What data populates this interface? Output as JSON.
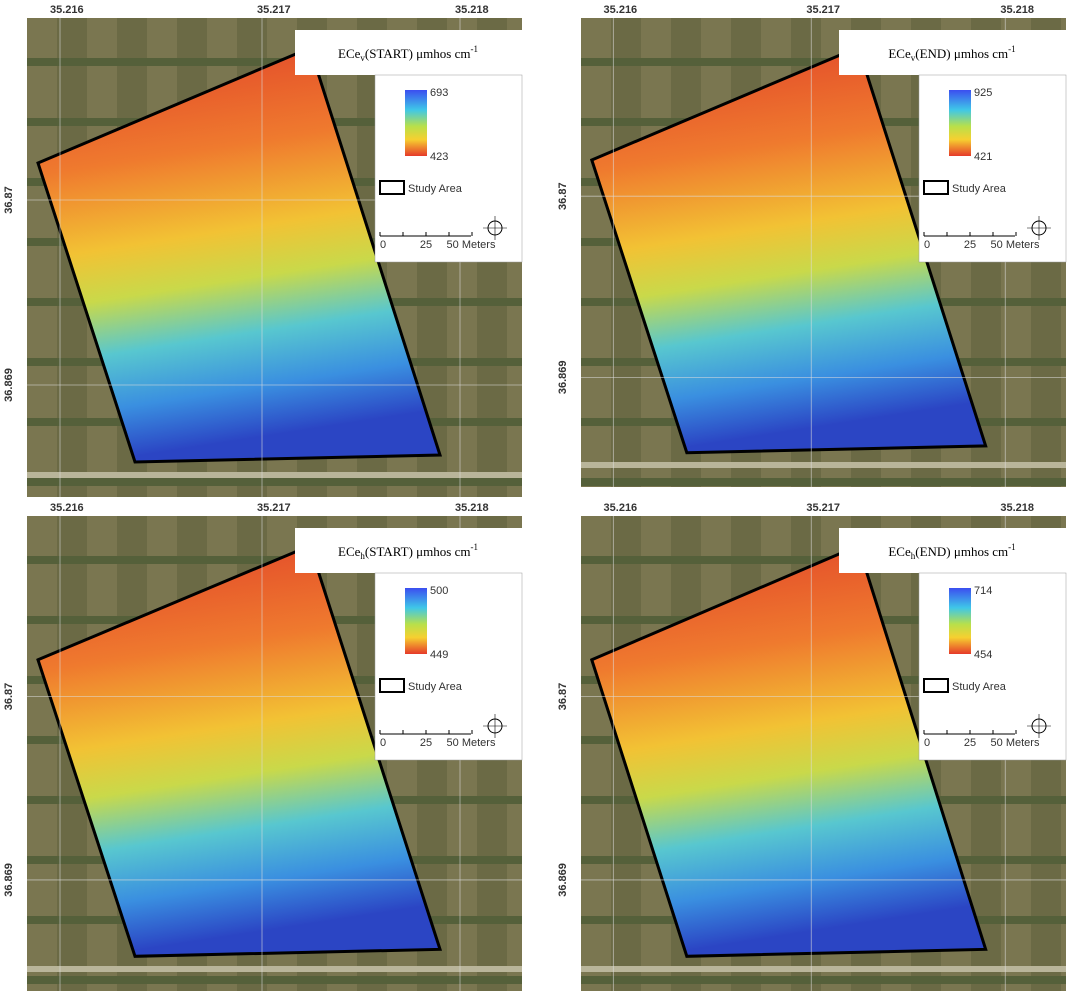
{
  "panels": [
    {
      "title": {
        "base": "ECe",
        "sub": "v",
        "rest": "(START) μmhos cm",
        "sup": "-1"
      },
      "legend_max": "693",
      "legend_min": "423",
      "study_area": "Study Area",
      "scale": [
        "0",
        "25",
        "50 Meters"
      ],
      "lon_labels": [
        "35.216",
        "35.217",
        "35.218"
      ],
      "lat_labels": [
        "36.87",
        "36.869"
      ]
    },
    {
      "title": {
        "base": "ECe",
        "sub": "v",
        "rest": "(END) μmhos cm",
        "sup": "-1"
      },
      "legend_max": "925",
      "legend_min": "421",
      "study_area": "Study Area",
      "scale": [
        "0",
        "25",
        "50 Meters"
      ],
      "lon_labels": [
        "35.216",
        "35.217",
        "35.218"
      ],
      "lat_labels": [
        "36.87",
        "36.869"
      ]
    },
    {
      "title": {
        "base": "ECe",
        "sub": "h",
        "rest": "(START) μmhos cm",
        "sup": "-1"
      },
      "legend_max": "500",
      "legend_min": "449",
      "study_area": "Study Area",
      "scale": [
        "0",
        "25",
        "50 Meters"
      ],
      "lon_labels": [
        "35.216",
        "35.217",
        "35.218"
      ],
      "lat_labels": [
        "36.87",
        "36.869"
      ]
    },
    {
      "title": {
        "base": "ECe",
        "sub": "h",
        "rest": "(END) μmhos cm",
        "sup": "-1"
      },
      "legend_max": "714",
      "legend_min": "454",
      "study_area": "Study Area",
      "scale": [
        "0",
        "25",
        "50 Meters"
      ],
      "lon_labels": [
        "35.216",
        "35.217",
        "35.218"
      ],
      "lat_labels": [
        "36.87",
        "36.869"
      ]
    }
  ]
}
